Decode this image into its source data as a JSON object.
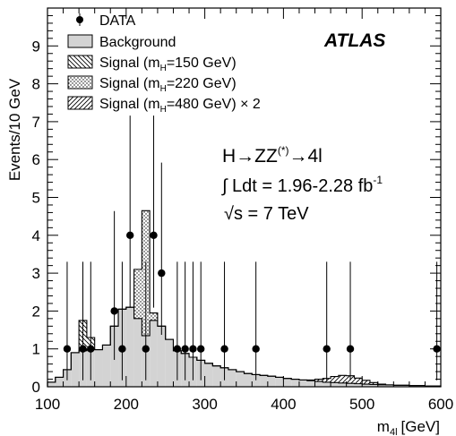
{
  "chart_data": {
    "type": "bar",
    "experiment_label": "ATLAS",
    "xlabel": "m",
    "xlabel_sub": "4l",
    "xlabel_unit": "[GeV]",
    "ylabel": "Events/10 GeV",
    "xlim": [
      100,
      600
    ],
    "ylim": [
      0,
      10
    ],
    "x_ticks": [
      100,
      200,
      300,
      400,
      500,
      600
    ],
    "y_ticks": [
      0,
      1,
      2,
      3,
      4,
      5,
      6,
      7,
      8,
      9
    ],
    "legend_placement": "top-left",
    "legend": [
      {
        "key": "data",
        "label": "DATA"
      },
      {
        "key": "background",
        "label": "Background"
      },
      {
        "key": "sig150",
        "label_pre": "Signal (m",
        "label_sub": "H",
        "label_post": "=150 GeV)"
      },
      {
        "key": "sig220",
        "label_pre": "Signal (m",
        "label_sub": "H",
        "label_post": "=220 GeV)"
      },
      {
        "key": "sig480",
        "label_pre": "Signal (m",
        "label_sub": "H",
        "label_post": "=480 GeV) × 2"
      }
    ],
    "annotations": {
      "process_main": "H→ZZ",
      "process_sup": "(*)",
      "process_end": "→4l",
      "lumi_pre": "∫ Ldt = 1.96-2.28 fb",
      "lumi_sup": "-1",
      "energy_root": "√",
      "energy_rest": "s = 7 TeV"
    },
    "bin_edges": [
      100,
      110,
      120,
      130,
      140,
      150,
      160,
      170,
      180,
      190,
      200,
      210,
      220,
      230,
      240,
      250,
      260,
      270,
      280,
      290,
      300,
      310,
      320,
      330,
      340,
      350,
      360,
      370,
      380,
      390,
      400,
      410,
      420,
      430,
      440,
      450,
      460,
      470,
      480,
      490,
      500,
      510,
      520,
      530,
      540,
      550,
      560,
      570,
      580,
      590,
      600
    ],
    "background": [
      0.12,
      0.25,
      0.45,
      0.9,
      0.95,
      1.0,
      0.98,
      1.1,
      1.6,
      2.05,
      2.1,
      1.8,
      1.35,
      1.75,
      1.6,
      1.25,
      0.95,
      0.88,
      0.78,
      0.7,
      0.62,
      0.55,
      0.5,
      0.45,
      0.4,
      0.35,
      0.32,
      0.3,
      0.28,
      0.25,
      0.22,
      0.2,
      0.18,
      0.16,
      0.14,
      0.12,
      0.11,
      0.1,
      0.09,
      0.08,
      0.07,
      0.06,
      0.05,
      0.05,
      0.04,
      0.04,
      0.03,
      0.03,
      0.02,
      0.02
    ],
    "signal_150": [
      0,
      0,
      0,
      0,
      0.8,
      0.3,
      0,
      0,
      0,
      0,
      0,
      0,
      0,
      0,
      0,
      0,
      0,
      0,
      0,
      0,
      0,
      0,
      0,
      0,
      0,
      0,
      0,
      0,
      0,
      0,
      0,
      0,
      0,
      0,
      0,
      0,
      0,
      0,
      0,
      0,
      0,
      0,
      0,
      0,
      0,
      0,
      0,
      0,
      0,
      0
    ],
    "signal_220": [
      0,
      0,
      0,
      0,
      0,
      0,
      0,
      0,
      0,
      0,
      0,
      1.3,
      3.3,
      0.2,
      0,
      0,
      0,
      0,
      0,
      0,
      0,
      0,
      0,
      0,
      0,
      0,
      0,
      0,
      0,
      0,
      0,
      0,
      0,
      0,
      0,
      0,
      0,
      0,
      0,
      0,
      0,
      0,
      0,
      0,
      0,
      0,
      0,
      0,
      0,
      0
    ],
    "signal_480": [
      0,
      0,
      0,
      0,
      0,
      0,
      0,
      0,
      0,
      0,
      0,
      0,
      0,
      0,
      0,
      0,
      0,
      0,
      0,
      0,
      0,
      0,
      0,
      0,
      0,
      0,
      0,
      0,
      0,
      0,
      0,
      0,
      0,
      0.02,
      0.06,
      0.1,
      0.16,
      0.2,
      0.2,
      0.15,
      0.1,
      0.05,
      0.02,
      0,
      0,
      0,
      0,
      0,
      0,
      0
    ],
    "data_points": [
      {
        "x": 125,
        "y": 1,
        "err_lo": 0.83,
        "err_hi": 2.3
      },
      {
        "x": 145,
        "y": 1,
        "err_lo": 0.83,
        "err_hi": 2.3
      },
      {
        "x": 155,
        "y": 1,
        "err_lo": 0.83,
        "err_hi": 2.3
      },
      {
        "x": 185,
        "y": 2,
        "err_lo": 1.29,
        "err_hi": 2.64
      },
      {
        "x": 195,
        "y": 1,
        "err_lo": 0.83,
        "err_hi": 2.3
      },
      {
        "x": 205,
        "y": 4,
        "err_lo": 1.91,
        "err_hi": 3.16
      },
      {
        "x": 225,
        "y": 1,
        "err_lo": 0.83,
        "err_hi": 2.3
      },
      {
        "x": 235,
        "y": 4,
        "err_lo": 1.91,
        "err_hi": 3.16
      },
      {
        "x": 245,
        "y": 3,
        "err_lo": 1.63,
        "err_hi": 2.92
      },
      {
        "x": 265,
        "y": 1,
        "err_lo": 0.83,
        "err_hi": 2.3
      },
      {
        "x": 275,
        "y": 1,
        "err_lo": 0.83,
        "err_hi": 2.3
      },
      {
        "x": 285,
        "y": 1,
        "err_lo": 0.83,
        "err_hi": 2.3
      },
      {
        "x": 295,
        "y": 1,
        "err_lo": 0.83,
        "err_hi": 2.3
      },
      {
        "x": 325,
        "y": 1,
        "err_lo": 0.83,
        "err_hi": 2.3
      },
      {
        "x": 365,
        "y": 1,
        "err_lo": 0.83,
        "err_hi": 2.3
      },
      {
        "x": 455,
        "y": 1,
        "err_lo": 0.83,
        "err_hi": 2.3
      },
      {
        "x": 485,
        "y": 1,
        "err_lo": 0.83,
        "err_hi": 2.3
      },
      {
        "x": 595,
        "y": 1,
        "err_lo": 0.83,
        "err_hi": 2.3
      }
    ],
    "colors": {
      "background_fill": "#d3d3d3",
      "line": "#000000",
      "data": "#000000"
    }
  }
}
